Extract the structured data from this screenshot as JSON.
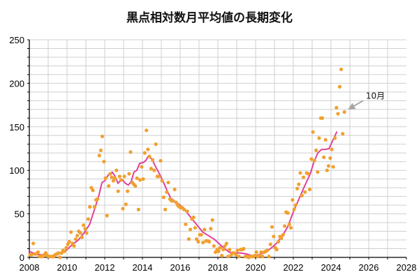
{
  "chart_data": {
    "type": "scatter",
    "title": "黒点相対数月平均値の長期変化",
    "xlabel": "",
    "ylabel": "",
    "xlim": [
      2008,
      2028
    ],
    "ylim": [
      0,
      250
    ],
    "x_ticks": [
      "2008",
      "2010",
      "2012",
      "2014",
      "2016",
      "2018",
      "2020",
      "2022",
      "2024",
      "2026",
      "2028"
    ],
    "y_ticks": [
      "0",
      "50",
      "100",
      "150",
      "200",
      "250"
    ],
    "grid": true,
    "legend": "none",
    "colors": {
      "monthly": "#f0a030",
      "smoothed": "#e0409a",
      "grid": "#cfcfcf",
      "axis": "#000000",
      "arrow": "#a6a6a6"
    },
    "annotation": {
      "text": "10月",
      "arrow_from": [
        2025.7,
        180
      ],
      "arrow_to": [
        2024.9,
        170
      ]
    },
    "series": [
      {
        "kind": "monthly",
        "points": [
          [
            2008.04,
            3
          ],
          [
            2008.12,
            3
          ],
          [
            2008.21,
            16
          ],
          [
            2008.29,
            4
          ],
          [
            2008.37,
            4
          ],
          [
            2008.46,
            6
          ],
          [
            2008.54,
            1
          ],
          [
            2008.62,
            1
          ],
          [
            2008.71,
            1
          ],
          [
            2008.79,
            3
          ],
          [
            2008.87,
            5
          ],
          [
            2008.96,
            2
          ],
          [
            2009.04,
            1
          ],
          [
            2009.12,
            1
          ],
          [
            2009.21,
            1
          ],
          [
            2009.29,
            1
          ],
          [
            2009.37,
            3
          ],
          [
            2009.46,
            4
          ],
          [
            2009.54,
            5
          ],
          [
            2009.62,
            0
          ],
          [
            2009.71,
            5
          ],
          [
            2009.79,
            8
          ],
          [
            2009.87,
            7
          ],
          [
            2009.96,
            11
          ],
          [
            2010.04,
            15
          ],
          [
            2010.12,
            18
          ],
          [
            2010.21,
            29
          ],
          [
            2010.29,
            16
          ],
          [
            2010.37,
            13
          ],
          [
            2010.46,
            21
          ],
          [
            2010.54,
            25
          ],
          [
            2010.62,
            30
          ],
          [
            2010.71,
            28
          ],
          [
            2010.79,
            23
          ],
          [
            2010.87,
            37
          ],
          [
            2010.96,
            33
          ],
          [
            2011.04,
            28
          ],
          [
            2011.12,
            44
          ],
          [
            2011.21,
            58
          ],
          [
            2011.29,
            80
          ],
          [
            2011.37,
            77
          ],
          [
            2011.46,
            58
          ],
          [
            2011.54,
            66
          ],
          [
            2011.62,
            67
          ],
          [
            2011.71,
            117
          ],
          [
            2011.79,
            123
          ],
          [
            2011.87,
            139
          ],
          [
            2011.96,
            110
          ],
          [
            2012.04,
            91
          ],
          [
            2012.12,
            48
          ],
          [
            2012.21,
            82
          ],
          [
            2012.29,
            96
          ],
          [
            2012.37,
            92
          ],
          [
            2012.46,
            88
          ],
          [
            2012.54,
            91
          ],
          [
            2012.62,
            100
          ],
          [
            2012.71,
            76
          ],
          [
            2012.79,
            93
          ],
          [
            2012.87,
            89
          ],
          [
            2012.96,
            56
          ],
          [
            2013.04,
            93
          ],
          [
            2013.12,
            61
          ],
          [
            2013.21,
            76
          ],
          [
            2013.29,
            96
          ],
          [
            2013.37,
            121
          ],
          [
            2013.46,
            86
          ],
          [
            2013.54,
            84
          ],
          [
            2013.62,
            82
          ],
          [
            2013.71,
            91
          ],
          [
            2013.79,
            55
          ],
          [
            2013.87,
            89
          ],
          [
            2013.96,
            104
          ],
          [
            2014.04,
            90
          ],
          [
            2014.12,
            120
          ],
          [
            2014.21,
            146
          ],
          [
            2014.29,
            124
          ],
          [
            2014.37,
            116
          ],
          [
            2014.46,
            102
          ],
          [
            2014.54,
            112
          ],
          [
            2014.62,
            100
          ],
          [
            2014.71,
            130
          ],
          [
            2014.79,
            93
          ],
          [
            2014.87,
            93
          ],
          [
            2014.96,
            111
          ],
          [
            2015.04,
            88
          ],
          [
            2015.12,
            69
          ],
          [
            2015.21,
            55
          ],
          [
            2015.29,
            75
          ],
          [
            2015.37,
            86
          ],
          [
            2015.46,
            67
          ],
          [
            2015.54,
            65
          ],
          [
            2015.62,
            65
          ],
          [
            2015.71,
            78
          ],
          [
            2015.79,
            63
          ],
          [
            2015.87,
            60
          ],
          [
            2015.96,
            58
          ],
          [
            2016.04,
            57
          ],
          [
            2016.12,
            57
          ],
          [
            2016.21,
            55
          ],
          [
            2016.29,
            38
          ],
          [
            2016.37,
            53
          ],
          [
            2016.46,
            21
          ],
          [
            2016.54,
            32
          ],
          [
            2016.62,
            44
          ],
          [
            2016.71,
            46
          ],
          [
            2016.79,
            34
          ],
          [
            2016.87,
            21
          ],
          [
            2016.96,
            18
          ],
          [
            2017.04,
            26
          ],
          [
            2017.12,
            26
          ],
          [
            2017.21,
            17
          ],
          [
            2017.29,
            32
          ],
          [
            2017.37,
            19
          ],
          [
            2017.46,
            19
          ],
          [
            2017.54,
            18
          ],
          [
            2017.62,
            33
          ],
          [
            2017.71,
            43
          ],
          [
            2017.79,
            13
          ],
          [
            2017.87,
            6
          ],
          [
            2017.96,
            9
          ],
          [
            2018.04,
            7
          ],
          [
            2018.12,
            11
          ],
          [
            2018.21,
            2
          ],
          [
            2018.29,
            9
          ],
          [
            2018.37,
            13
          ],
          [
            2018.46,
            16
          ],
          [
            2018.54,
            1
          ],
          [
            2018.62,
            9
          ],
          [
            2018.71,
            3
          ],
          [
            2018.79,
            5
          ],
          [
            2018.87,
            5
          ],
          [
            2018.96,
            3
          ],
          [
            2019.04,
            8
          ],
          [
            2019.12,
            1
          ],
          [
            2019.21,
            9
          ],
          [
            2019.29,
            9
          ],
          [
            2019.37,
            10
          ],
          [
            2019.46,
            1
          ],
          [
            2019.54,
            1
          ],
          [
            2019.62,
            0
          ],
          [
            2019.71,
            1
          ],
          [
            2019.79,
            1
          ],
          [
            2019.87,
            1
          ],
          [
            2019.96,
            2
          ],
          [
            2020.04,
            6
          ],
          [
            2020.12,
            1
          ],
          [
            2020.21,
            2
          ],
          [
            2020.29,
            6
          ],
          [
            2020.37,
            1
          ],
          [
            2020.46,
            6
          ],
          [
            2020.54,
            7
          ],
          [
            2020.62,
            8
          ],
          [
            2020.71,
            1
          ],
          [
            2020.79,
            15
          ],
          [
            2020.87,
            35
          ],
          [
            2020.96,
            24
          ],
          [
            2021.04,
            11
          ],
          [
            2021.12,
            9
          ],
          [
            2021.21,
            18
          ],
          [
            2021.29,
            24
          ],
          [
            2021.37,
            22
          ],
          [
            2021.46,
            26
          ],
          [
            2021.54,
            36
          ],
          [
            2021.62,
            52
          ],
          [
            2021.71,
            51
          ],
          [
            2021.79,
            38
          ],
          [
            2021.87,
            34
          ],
          [
            2021.96,
            66
          ],
          [
            2022.04,
            55
          ],
          [
            2022.12,
            60
          ],
          [
            2022.21,
            79
          ],
          [
            2022.29,
            84
          ],
          [
            2022.37,
            97
          ],
          [
            2022.46,
            71
          ],
          [
            2022.54,
            92
          ],
          [
            2022.62,
            75
          ],
          [
            2022.71,
            97
          ],
          [
            2022.79,
            96
          ],
          [
            2022.87,
            78
          ],
          [
            2022.96,
            113
          ],
          [
            2023.04,
            144
          ],
          [
            2023.12,
            111
          ],
          [
            2023.21,
            123
          ],
          [
            2023.29,
            98
          ],
          [
            2023.37,
            137
          ],
          [
            2023.46,
            160
          ],
          [
            2023.54,
            160
          ],
          [
            2023.62,
            115
          ],
          [
            2023.71,
            135
          ],
          [
            2023.79,
            100
          ],
          [
            2023.87,
            105
          ],
          [
            2023.96,
            114
          ],
          [
            2024.04,
            124
          ],
          [
            2024.12,
            104
          ],
          [
            2024.21,
            137
          ],
          [
            2024.29,
            172
          ],
          [
            2024.37,
            165
          ],
          [
            2024.46,
            196
          ],
          [
            2024.54,
            216
          ],
          [
            2024.62,
            142
          ],
          [
            2024.71,
            167
          ]
        ]
      },
      {
        "kind": "smoothed",
        "points": [
          [
            2008.0,
            7
          ],
          [
            2008.3,
            4
          ],
          [
            2008.6,
            3
          ],
          [
            2008.9,
            2
          ],
          [
            2009.2,
            2
          ],
          [
            2009.5,
            3
          ],
          [
            2009.8,
            6
          ],
          [
            2010.0,
            9
          ],
          [
            2010.3,
            15
          ],
          [
            2010.6,
            20
          ],
          [
            2010.9,
            28
          ],
          [
            2011.2,
            38
          ],
          [
            2011.5,
            58
          ],
          [
            2011.7,
            72
          ],
          [
            2011.85,
            86
          ],
          [
            2012.0,
            88
          ],
          [
            2012.2,
            95
          ],
          [
            2012.4,
            98
          ],
          [
            2012.55,
            93
          ],
          [
            2012.7,
            85
          ],
          [
            2012.9,
            90
          ],
          [
            2013.1,
            85
          ],
          [
            2013.25,
            83
          ],
          [
            2013.4,
            87
          ],
          [
            2013.55,
            98
          ],
          [
            2013.7,
            100
          ],
          [
            2013.85,
            108
          ],
          [
            2014.05,
            109
          ],
          [
            2014.2,
            112
          ],
          [
            2014.3,
            116
          ],
          [
            2014.5,
            113
          ],
          [
            2014.7,
            104
          ],
          [
            2014.9,
            96
          ],
          [
            2015.1,
            87
          ],
          [
            2015.3,
            77
          ],
          [
            2015.5,
            68
          ],
          [
            2015.8,
            63
          ],
          [
            2016.0,
            60
          ],
          [
            2016.3,
            53
          ],
          [
            2016.6,
            45
          ],
          [
            2016.9,
            37
          ],
          [
            2017.2,
            29
          ],
          [
            2017.5,
            25
          ],
          [
            2017.8,
            21
          ],
          [
            2018.0,
            17
          ],
          [
            2018.3,
            11
          ],
          [
            2018.6,
            6
          ],
          [
            2018.9,
            5
          ],
          [
            2019.2,
            5
          ],
          [
            2019.5,
            4
          ],
          [
            2019.8,
            2
          ],
          [
            2020.0,
            2
          ],
          [
            2020.3,
            4
          ],
          [
            2020.6,
            7
          ],
          [
            2020.9,
            12
          ],
          [
            2021.1,
            16
          ],
          [
            2021.4,
            24
          ],
          [
            2021.7,
            35
          ],
          [
            2022.0,
            52
          ],
          [
            2022.3,
            67
          ],
          [
            2022.6,
            82
          ],
          [
            2022.9,
            96
          ],
          [
            2023.1,
            110
          ],
          [
            2023.3,
            120
          ],
          [
            2023.5,
            124
          ],
          [
            2023.7,
            124
          ],
          [
            2023.9,
            125
          ],
          [
            2024.0,
            130
          ],
          [
            2024.15,
            137
          ],
          [
            2024.3,
            144
          ]
        ]
      }
    ]
  }
}
